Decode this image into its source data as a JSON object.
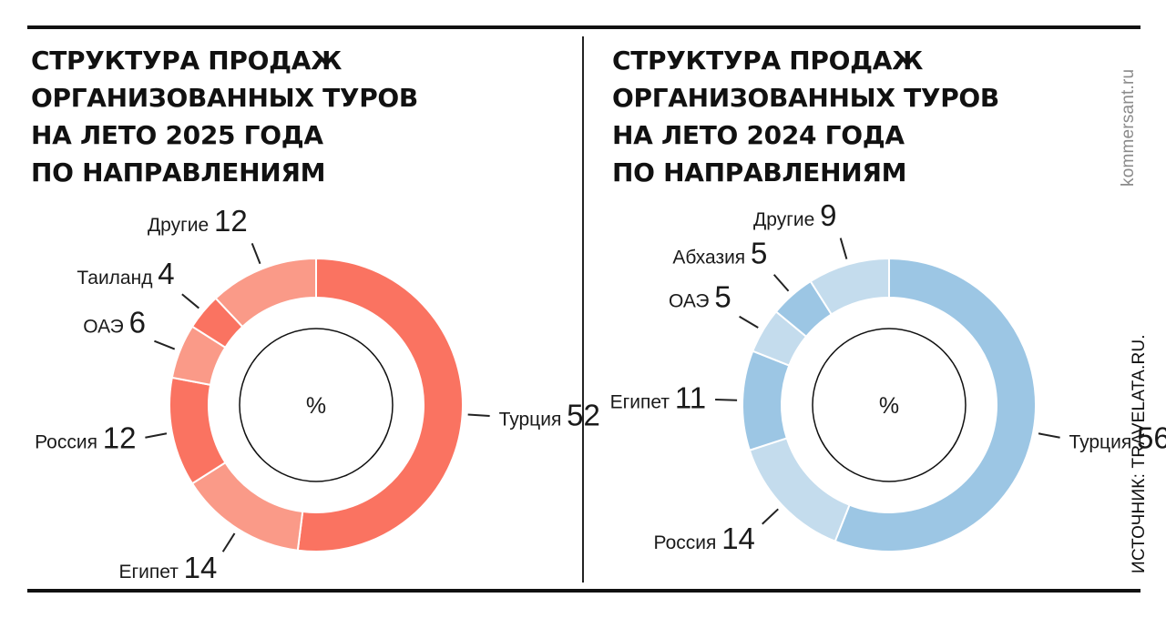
{
  "watermark": "kommersant.ru",
  "source": "ИСТОЧНИК: TRAVELATA.RU.",
  "chart_data": [
    {
      "type": "pie",
      "title": "СТРУКТУРА ПРОДАЖ ОРГАНИЗОВАННЫХ ТУРОВ НА ЛЕТО 2025 ГОДА ПО НАПРАВЛЕНИЯМ",
      "title_lines": [
        "СТРУКТУРА ПРОДАЖ",
        "ОРГАНИЗОВАННЫХ ТУРОВ",
        "НА ЛЕТО 2025 ГОДА",
        "ПО НАПРАВЛЕНИЯМ"
      ],
      "unit": "%",
      "slices": [
        {
          "label": "Турция",
          "value": 52,
          "color": "#fa7361"
        },
        {
          "label": "Египет",
          "value": 14,
          "color": "#fa9a88"
        },
        {
          "label": "Россия",
          "value": 12,
          "color": "#fa7361"
        },
        {
          "label": "ОАЭ",
          "value": 6,
          "color": "#fa9a88"
        },
        {
          "label": "Таиланд",
          "value": 4,
          "color": "#fa7361"
        },
        {
          "label": "Другие",
          "value": 12,
          "color": "#fa9a88"
        }
      ]
    },
    {
      "type": "pie",
      "title": "СТРУКТУРА ПРОДАЖ ОРГАНИЗОВАННЫХ ТУРОВ НА ЛЕТО 2024 ГОДА ПО НАПРАВЛЕНИЯМ",
      "title_lines": [
        "СТРУКТУРА ПРОДАЖ",
        "ОРГАНИЗОВАННЫХ ТУРОВ",
        "НА ЛЕТО 2024 ГОДА",
        "ПО НАПРАВЛЕНИЯМ"
      ],
      "unit": "%",
      "slices": [
        {
          "label": "Турция",
          "value": 56,
          "color": "#9cc6e4"
        },
        {
          "label": "Россия",
          "value": 14,
          "color": "#c4dced"
        },
        {
          "label": "Египет",
          "value": 11,
          "color": "#9cc6e4"
        },
        {
          "label": "ОАЭ",
          "value": 5,
          "color": "#c4dced"
        },
        {
          "label": "Абхазия",
          "value": 5,
          "color": "#9cc6e4"
        },
        {
          "label": "Другие",
          "value": 9,
          "color": "#c4dced"
        }
      ]
    }
  ]
}
